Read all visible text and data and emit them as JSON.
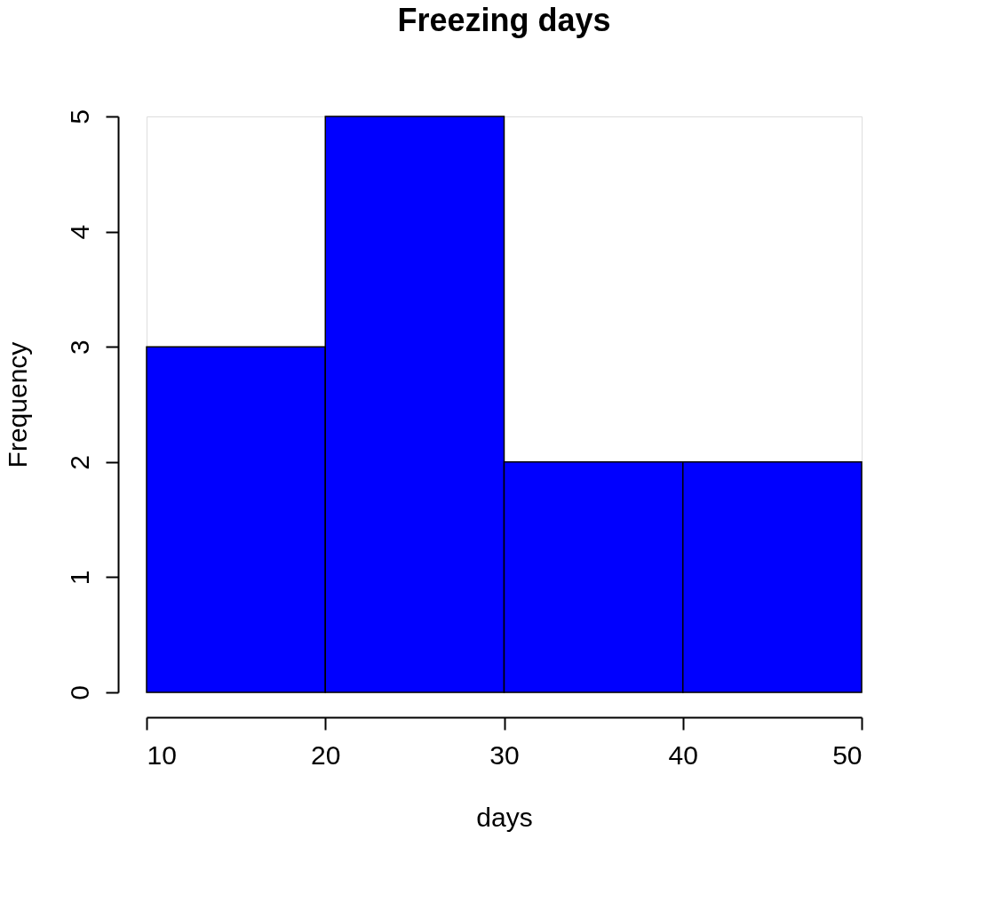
{
  "chart_data": {
    "type": "histogram",
    "title": "Freezing days",
    "xlabel": "days",
    "ylabel": "Frequency",
    "bins": [
      10,
      20,
      30,
      40,
      50
    ],
    "values": [
      3,
      5,
      2,
      2
    ],
    "color": "#0000ff",
    "xlim": [
      10,
      50
    ],
    "ylim": [
      0,
      5
    ],
    "xticks": [
      10,
      20,
      30,
      40,
      50
    ],
    "yticks": [
      0,
      1,
      2,
      3,
      4,
      5
    ]
  }
}
